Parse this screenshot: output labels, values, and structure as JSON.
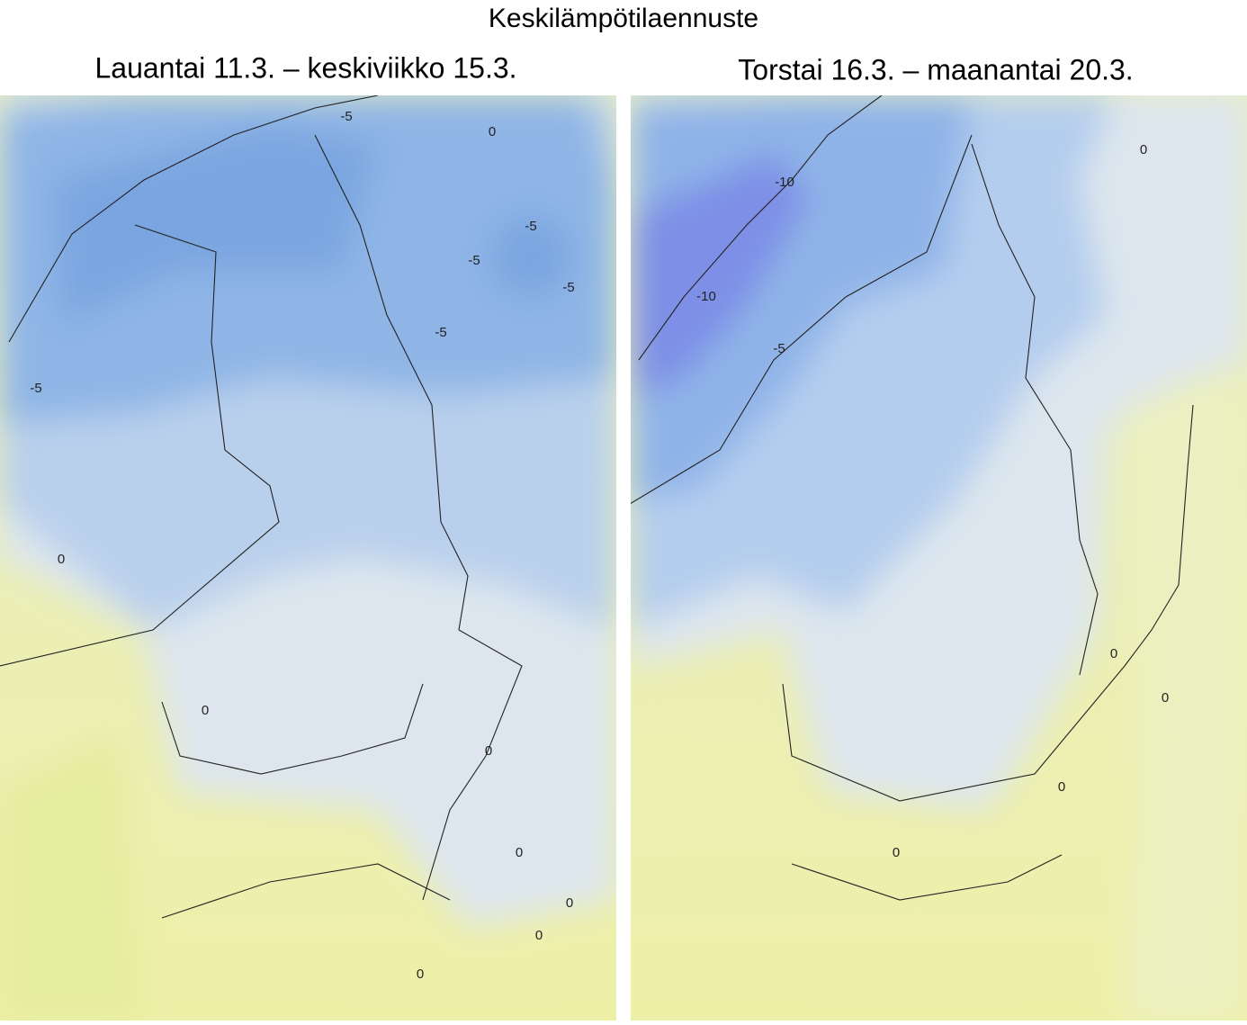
{
  "title": "Keskilämpötilaennuste",
  "panels": [
    {
      "title": "Lauantai 11.3. – keskiviikko 15.3.",
      "contour_labels": [
        "-5",
        "0",
        "-5",
        "-5",
        "-5",
        "-5",
        "-5",
        "0",
        "0",
        "0",
        "0",
        "0",
        "0",
        "0"
      ]
    },
    {
      "title": "Torstai 16.3. – maanantai 20.3.",
      "contour_labels": [
        "-10",
        "-10",
        "-5",
        "0",
        "0",
        "0",
        "0",
        "0"
      ]
    }
  ]
}
